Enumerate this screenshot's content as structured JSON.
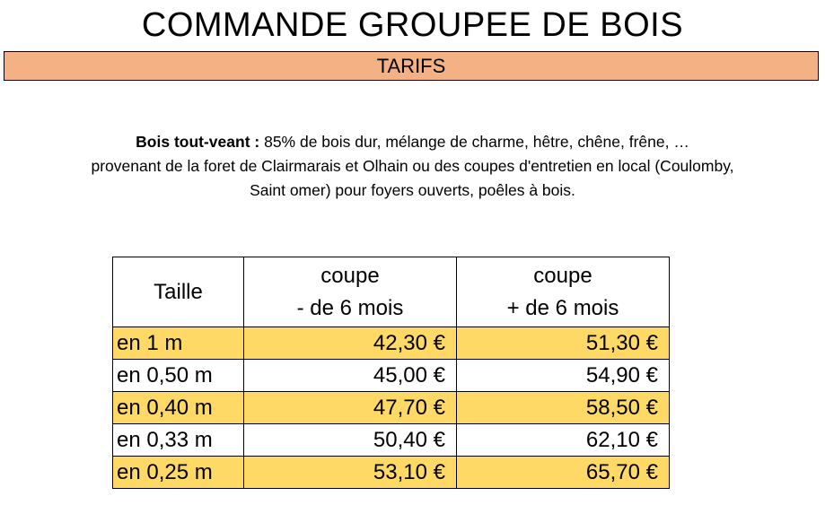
{
  "title": "COMMANDE GROUPEE DE BOIS",
  "banner": "TARIFS",
  "description": {
    "bold_label": "Bois tout-veant :",
    "line1_rest": " 85% de bois dur, mélange de charme, hêtre, chêne, frêne, …",
    "line2": "provenant de la foret de Clairmarais et Olhain ou des coupes d'entretien en local (Coulomby,",
    "line3": "Saint omer) pour foyers ouverts, poêles à bois."
  },
  "table": {
    "headers": {
      "size": "Taille",
      "col_a_line1": "coupe",
      "col_a_line2": "- de 6 mois",
      "col_b_line1": "coupe",
      "col_b_line2": "+ de 6 mois"
    },
    "rows": [
      {
        "size": "en 1 m",
        "under6": "42,30 €",
        "over6": "51,30 €"
      },
      {
        "size": "en 0,50 m",
        "under6": "45,00 €",
        "over6": "54,90 €"
      },
      {
        "size": "en 0,40 m",
        "under6": "47,70 €",
        "over6": "58,50 €"
      },
      {
        "size": "en 0,33 m",
        "under6": "50,40 €",
        "over6": "62,10 €"
      },
      {
        "size": "en 0,25 m",
        "under6": "53,10 €",
        "over6": "65,70 €"
      }
    ]
  },
  "colors": {
    "banner_bg": "#f4b183",
    "row_highlight": "#ffd966"
  }
}
